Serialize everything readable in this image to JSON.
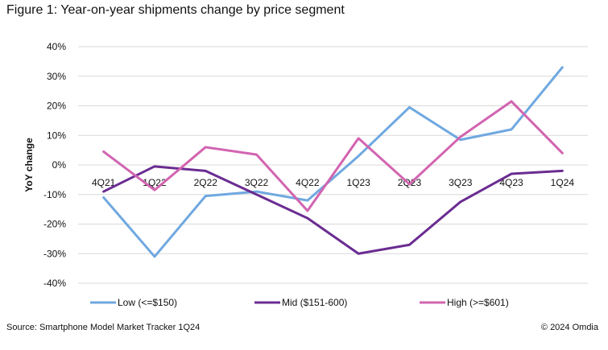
{
  "figure_title": "Figure 1: Year-on-year shipments change by price segment",
  "source": "Source: Smartphone Model Market Tracker 1Q24",
  "copyright": "© 2024 Omdia",
  "chart_data": {
    "type": "line",
    "title": "Figure 1: Year-on-year shipments change by price segment",
    "xlabel": "",
    "ylabel": "YoY change",
    "categories": [
      "4Q21",
      "1Q22",
      "2Q22",
      "3Q22",
      "4Q22",
      "1Q23",
      "2Q23",
      "3Q23",
      "4Q23",
      "1Q24"
    ],
    "ylim": [
      -40,
      40
    ],
    "yticks": [
      40,
      30,
      20,
      10,
      0,
      -10,
      -20,
      -30,
      -40
    ],
    "ytick_labels": [
      "40%",
      "30%",
      "20%",
      "10%",
      "0%",
      "-10%",
      "-20%",
      "-30%",
      "-40%"
    ],
    "grid": true,
    "legend_position": "bottom",
    "series": [
      {
        "name": "Low (<=$150)",
        "color": "#6fa8e0",
        "values": [
          -11,
          -31,
          -10.5,
          -9,
          -12,
          3,
          19.5,
          8.5,
          12,
          33
        ]
      },
      {
        "name": "Mid ($151-600)",
        "color": "#6a2c91",
        "values": [
          -9,
          -0.5,
          -2,
          -10,
          -18,
          -30,
          -27,
          -12.5,
          -3,
          -2
        ]
      },
      {
        "name": "High (>=$601)",
        "color": "#d264b0",
        "values": [
          4.5,
          -8.5,
          6,
          3.5,
          -15.5,
          9,
          -6.5,
          9.5,
          21.5,
          4
        ]
      }
    ]
  }
}
